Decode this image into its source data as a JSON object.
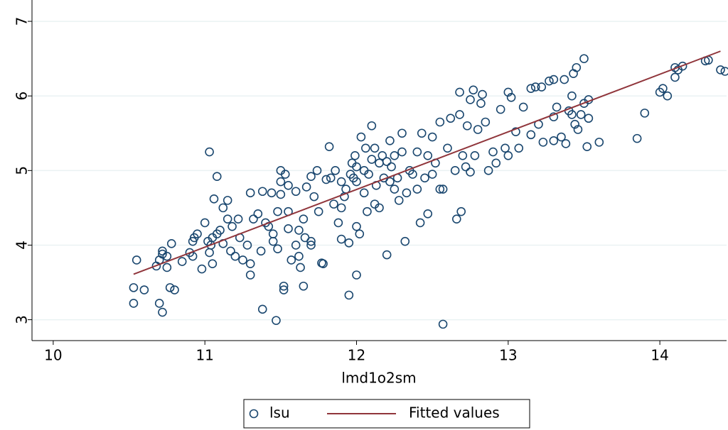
{
  "chart_data": {
    "type": "scatter",
    "x_label": "lmd1o2sm",
    "xlim": [
      9.86,
      14.44
    ],
    "xticks": [
      10,
      11,
      12,
      13,
      14
    ],
    "ylim": [
      2.72,
      7.21
    ],
    "yticks": [
      3,
      4,
      5,
      6,
      7
    ],
    "grid": true,
    "legend": "bottom",
    "series": [
      {
        "name": "lsu",
        "color": "#1a476f",
        "type": "scatter",
        "x": [
          10.53,
          10.53,
          10.55,
          10.6,
          10.68,
          10.7,
          10.72,
          10.7,
          10.72,
          10.72,
          10.75,
          10.75,
          10.77,
          10.8,
          10.78,
          10.85,
          10.9,
          10.92,
          10.92,
          10.93,
          10.95,
          10.98,
          11.0,
          11.02,
          11.03,
          11.04,
          11.05,
          11.05,
          11.03,
          11.06,
          11.08,
          11.08,
          11.1,
          11.12,
          11.12,
          11.15,
          11.15,
          11.17,
          11.18,
          11.2,
          11.22,
          11.23,
          11.25,
          11.28,
          11.3,
          11.3,
          11.3,
          11.32,
          11.35,
          11.37,
          11.38,
          11.38,
          11.4,
          11.42,
          11.44,
          11.45,
          11.45,
          11.47,
          11.48,
          11.48,
          11.5,
          11.5,
          11.5,
          11.52,
          11.52,
          11.53,
          11.55,
          11.55,
          11.55,
          11.57,
          11.6,
          11.6,
          11.62,
          11.62,
          11.63,
          11.65,
          11.65,
          11.66,
          11.67,
          11.7,
          11.7,
          11.7,
          11.72,
          11.74,
          11.75,
          11.77,
          11.78,
          11.8,
          11.82,
          11.83,
          11.85,
          11.86,
          11.88,
          11.9,
          11.9,
          11.9,
          11.92,
          11.93,
          11.95,
          11.95,
          11.96,
          11.97,
          11.98,
          11.99,
          12.0,
          12.0,
          12.0,
          12.0,
          12.02,
          12.03,
          12.05,
          12.05,
          12.06,
          12.07,
          12.08,
          12.1,
          12.1,
          12.12,
          12.12,
          12.13,
          12.15,
          12.15,
          12.17,
          12.18,
          12.2,
          12.2,
          12.22,
          12.22,
          12.23,
          12.25,
          12.25,
          12.27,
          12.28,
          12.3,
          12.3,
          12.32,
          12.33,
          12.35,
          12.37,
          12.4,
          12.4,
          12.42,
          12.43,
          12.45,
          12.47,
          12.47,
          12.5,
          12.5,
          12.52,
          12.55,
          12.55,
          12.57,
          12.57,
          12.6,
          12.62,
          12.65,
          12.66,
          12.68,
          12.68,
          12.69,
          12.7,
          12.72,
          12.73,
          12.75,
          12.75,
          12.77,
          12.78,
          12.8,
          12.82,
          12.83,
          12.85,
          12.87,
          12.9,
          12.92,
          12.95,
          12.98,
          13.0,
          13.0,
          13.02,
          13.05,
          13.07,
          13.1,
          13.15,
          13.15,
          13.18,
          13.2,
          13.22,
          13.23,
          13.27,
          13.3,
          13.3,
          13.3,
          13.32,
          13.35,
          13.37,
          13.38,
          13.4,
          13.42,
          13.42,
          13.43,
          13.44,
          13.45,
          13.46,
          13.48,
          13.5,
          13.5,
          13.52,
          13.53,
          13.53,
          13.6,
          13.85,
          13.9,
          14.0,
          14.02,
          14.05,
          14.1,
          14.1,
          14.12,
          14.15,
          14.3,
          14.32,
          14.4,
          14.43
        ],
        "values": [
          3.22,
          3.43,
          3.8,
          3.4,
          3.72,
          3.22,
          3.1,
          3.8,
          3.88,
          3.92,
          3.7,
          3.85,
          3.43,
          3.4,
          4.02,
          3.78,
          3.9,
          3.85,
          4.05,
          4.1,
          4.15,
          3.68,
          4.3,
          4.05,
          3.9,
          4.0,
          3.75,
          4.1,
          5.25,
          4.62,
          4.92,
          4.15,
          4.2,
          4.5,
          4.02,
          4.6,
          4.35,
          3.92,
          4.25,
          3.85,
          4.35,
          4.1,
          3.8,
          4.0,
          4.7,
          3.75,
          3.6,
          4.35,
          4.42,
          3.92,
          4.72,
          3.14,
          4.3,
          4.25,
          4.7,
          4.15,
          4.05,
          2.99,
          3.95,
          4.45,
          4.68,
          4.85,
          5.0,
          3.45,
          3.4,
          4.95,
          4.8,
          4.45,
          4.22,
          3.8,
          4.0,
          4.72,
          4.2,
          3.85,
          3.7,
          4.35,
          3.45,
          4.1,
          4.78,
          4.92,
          4.0,
          4.05,
          4.65,
          5.0,
          4.45,
          3.76,
          3.75,
          4.88,
          5.32,
          4.9,
          4.55,
          5.0,
          4.3,
          4.5,
          4.85,
          4.08,
          4.65,
          4.75,
          3.33,
          4.03,
          4.95,
          5.1,
          4.9,
          5.2,
          3.6,
          4.25,
          5.05,
          4.85,
          4.15,
          5.45,
          4.7,
          5.0,
          5.3,
          4.45,
          4.95,
          5.15,
          5.6,
          4.55,
          5.3,
          4.8,
          5.1,
          4.5,
          5.2,
          4.9,
          5.12,
          3.87,
          5.4,
          4.85,
          5.05,
          4.75,
          5.2,
          4.9,
          4.6,
          5.25,
          5.5,
          4.05,
          4.7,
          5.0,
          4.95,
          5.25,
          4.75,
          4.3,
          5.5,
          4.9,
          4.42,
          5.2,
          5.45,
          4.95,
          5.1,
          4.75,
          5.65,
          2.94,
          4.75,
          5.3,
          5.7,
          5.0,
          4.35,
          6.05,
          5.75,
          4.45,
          5.2,
          5.05,
          5.6,
          5.95,
          4.98,
          6.08,
          5.2,
          5.55,
          5.9,
          6.02,
          5.65,
          5.0,
          5.25,
          5.1,
          5.82,
          5.3,
          6.05,
          5.2,
          5.98,
          5.52,
          5.3,
          5.85,
          6.1,
          5.48,
          6.12,
          5.62,
          6.12,
          5.38,
          6.2,
          5.72,
          5.4,
          6.22,
          5.85,
          5.45,
          6.22,
          5.36,
          5.8,
          6.0,
          5.75,
          6.3,
          5.62,
          6.38,
          5.55,
          5.75,
          6.5,
          5.9,
          5.32,
          5.7,
          5.95,
          5.38,
          5.43,
          5.77,
          6.05,
          6.1,
          6.0,
          6.38,
          6.25,
          6.35,
          6.4,
          6.47,
          6.48,
          6.35,
          6.33
        ]
      },
      {
        "name": "Fitted values",
        "color": "#90353b",
        "type": "line",
        "x": [
          10.53,
          14.4
        ],
        "values": [
          3.61,
          6.6
        ]
      }
    ]
  }
}
